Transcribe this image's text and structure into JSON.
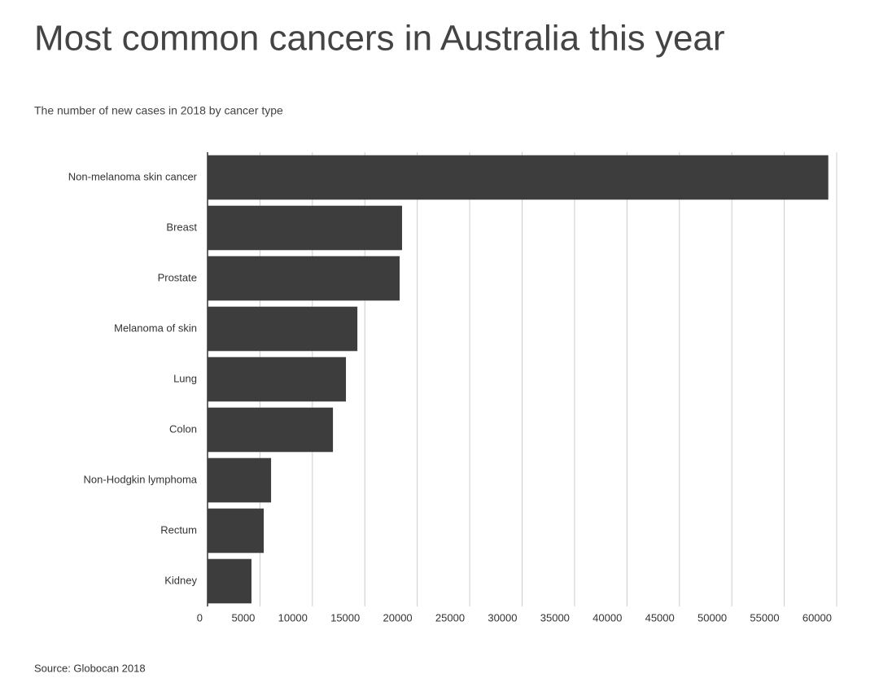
{
  "chart_data": {
    "type": "bar",
    "orientation": "horizontal",
    "title": "Most common cancers in Australia this year",
    "subtitle": "The number of new cases in 2018 by cancer type",
    "source": "Source:  Globocan 2018",
    "categories": [
      "Non-melanoma skin cancer",
      "Breast",
      "Prostate",
      "Melanoma of skin",
      "Lung",
      "Colon",
      "Non-Hodgkin lymphoma",
      "Rectum",
      "Kidney"
    ],
    "values": [
      59200,
      18550,
      18320,
      14290,
      13200,
      11960,
      6060,
      5360,
      4190
    ],
    "color": "#3d3d3d",
    "xlim": [
      0,
      60000
    ],
    "xticks": [
      0,
      5000,
      10000,
      15000,
      20000,
      25000,
      30000,
      35000,
      40000,
      45000,
      50000,
      55000,
      60000
    ],
    "grid": true
  }
}
